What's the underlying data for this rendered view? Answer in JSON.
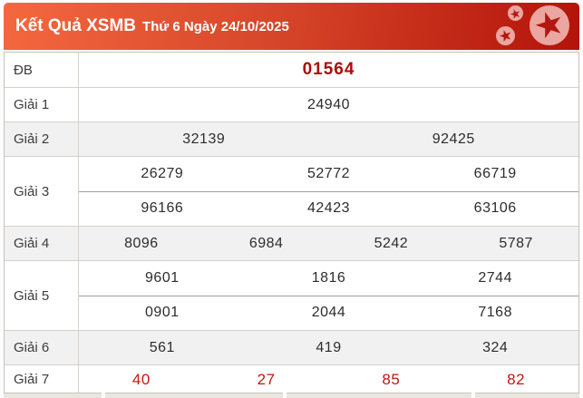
{
  "header": {
    "title_main": "Kết Quả XSMB",
    "title_date": "Thứ 6 Ngày 24/10/2025",
    "decoration_icons": [
      "star-icon",
      "star-icon",
      "star-icon"
    ]
  },
  "table": {
    "rows": [
      {
        "label": "ĐB",
        "style": "special",
        "shaded": false,
        "height": 38,
        "lines": [
          [
            "01564"
          ]
        ]
      },
      {
        "label": "Giải 1",
        "style": "normal",
        "shaded": false,
        "height": 37,
        "lines": [
          [
            "24940"
          ]
        ]
      },
      {
        "label": "Giải 2",
        "style": "normal",
        "shaded": true,
        "height": 37,
        "lines": [
          [
            "32139",
            "92425"
          ]
        ]
      },
      {
        "label": "Giải 3",
        "style": "normal",
        "shaded": false,
        "height": 75,
        "lines": [
          [
            "26279",
            "52772",
            "66719"
          ],
          [
            "96166",
            "42423",
            "63106"
          ]
        ]
      },
      {
        "label": "Giải 4",
        "style": "normal",
        "shaded": true,
        "height": 37,
        "lines": [
          [
            "8096",
            "6984",
            "5242",
            "5787"
          ]
        ]
      },
      {
        "label": "Giải 5",
        "style": "normal",
        "shaded": false,
        "height": 75,
        "lines": [
          [
            "9601",
            "1816",
            "2744"
          ],
          [
            "0901",
            "2044",
            "7168"
          ]
        ]
      },
      {
        "label": "Giải 6",
        "style": "normal",
        "shaded": true,
        "height": 37,
        "lines": [
          [
            "561",
            "419",
            "324"
          ]
        ]
      },
      {
        "label": "Giải 7",
        "style": "red",
        "shaded": false,
        "height": 31,
        "lines": [
          [
            "40",
            "27",
            "85",
            "82"
          ]
        ]
      }
    ]
  },
  "colors": {
    "header_gradient_start": "#f4683f",
    "header_gradient_end": "#b31309",
    "header_text": "#ffffff",
    "star_circle": "#eba6a1",
    "star_glyph": "#b21810",
    "special_number": "#ad0b0b",
    "red_number": "#c2170e",
    "shaded_row_bg": "#f1f1f1",
    "table_border": "#c6c2ba"
  }
}
